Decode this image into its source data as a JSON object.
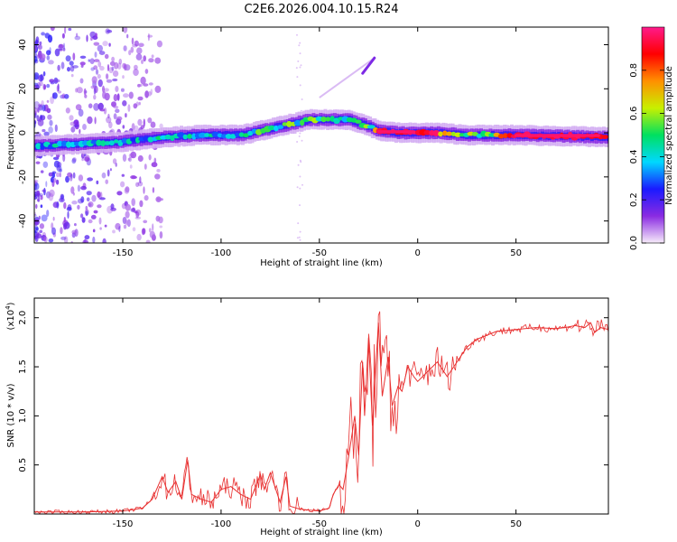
{
  "title": "C2E6.2026.004.10.15.R24",
  "chart_data": [
    {
      "type": "heatmap",
      "title": "C2E6.2026.004.10.15.R24",
      "xlabel": "Height of straight line (km)",
      "ylabel": "Frequency (Hz)",
      "xlim": [
        -195,
        97
      ],
      "ylim": [
        -50,
        48
      ],
      "xticks": [
        -150,
        -100,
        -50,
        0,
        50
      ],
      "yticks": [
        -40,
        -20,
        0,
        20,
        40
      ],
      "colorbar": {
        "label": "Normalized spectral amplitude",
        "range": [
          0.0,
          1.0
        ],
        "ticks": [
          0.0,
          0.2,
          0.4,
          0.6,
          0.8
        ],
        "tick_labels": [
          "0.0",
          "0.2",
          "0.4",
          "0.6",
          "0.8"
        ],
        "colors": [
          "#f7ecfa",
          "#8a2be2",
          "#1a1aff",
          "#00d8ff",
          "#00e060",
          "#c8f000",
          "#ff9000",
          "#ff0000",
          "#ff1a8c"
        ]
      },
      "ridge": {
        "x": [
          -195,
          -170,
          -150,
          -130,
          -110,
          -90,
          -75,
          -65,
          -55,
          -45,
          -35,
          -25,
          -20,
          -10,
          0,
          10,
          25,
          50,
          97
        ],
        "freq": [
          -6,
          -5,
          -4,
          -2,
          -1,
          -1,
          2,
          4,
          6,
          6,
          6,
          3,
          1,
          0,
          0,
          0,
          -1,
          -1,
          -2
        ],
        "amplitude": [
          0.45,
          0.45,
          0.45,
          0.5,
          0.5,
          0.5,
          0.6,
          0.6,
          0.6,
          0.6,
          0.55,
          0.6,
          0.95,
          1.0,
          1.0,
          0.95,
          0.6,
          1.0,
          1.0
        ]
      },
      "streak": {
        "x": [
          -30,
          -22
        ],
        "freq": [
          24,
          34
        ]
      }
    },
    {
      "type": "line",
      "xlabel": "Height of straight line (km)",
      "ylabel": "SNR (10 * v/v)",
      "y_multiplier": "(x10",
      "y_multiplier_exp": "4",
      "xlim": [
        -195,
        97
      ],
      "ylim": [
        0,
        2.2
      ],
      "xticks": [
        -150,
        -100,
        -50,
        0,
        50
      ],
      "yticks": [
        0.5,
        1.0,
        1.5,
        2.0
      ],
      "ytick_labels": [
        "0.5",
        "1.0",
        "1.5",
        "2.0"
      ],
      "line_color": "#e83030",
      "series": [
        {
          "name": "SNR",
          "x": [
            -195,
            -170,
            -150,
            -140,
            -135,
            -130,
            -127,
            -123,
            -120,
            -117,
            -115,
            -110,
            -105,
            -100,
            -95,
            -90,
            -85,
            -80,
            -78,
            -75,
            -70,
            -67,
            -65,
            -60,
            -55,
            -50,
            -45,
            -43,
            -40,
            -38,
            -35,
            -32,
            -30,
            -28,
            -27,
            -25,
            -23,
            -20,
            -18,
            -15,
            -13,
            -10,
            -8,
            -5,
            -2,
            0,
            5,
            10,
            15,
            20,
            25,
            30,
            35,
            40,
            50,
            60,
            70,
            75,
            80,
            85,
            88,
            90,
            93,
            97
          ],
          "values": [
            0.02,
            0.02,
            0.03,
            0.06,
            0.15,
            0.38,
            0.22,
            0.33,
            0.15,
            0.55,
            0.2,
            0.15,
            0.12,
            0.25,
            0.28,
            0.2,
            0.15,
            0.4,
            0.25,
            0.42,
            0.12,
            0.38,
            0.08,
            0.05,
            0.04,
            0.03,
            0.06,
            0.2,
            0.3,
            0.25,
            0.6,
            1.0,
            0.6,
            1.55,
            1.0,
            1.8,
            0.9,
            1.95,
            1.2,
            1.6,
            1.1,
            1.3,
            1.25,
            1.5,
            1.4,
            1.35,
            1.45,
            1.55,
            1.4,
            1.55,
            1.7,
            1.78,
            1.82,
            1.86,
            1.88,
            1.9,
            1.89,
            1.9,
            1.92,
            1.9,
            1.95,
            1.85,
            1.9,
            1.88
          ]
        }
      ]
    }
  ]
}
